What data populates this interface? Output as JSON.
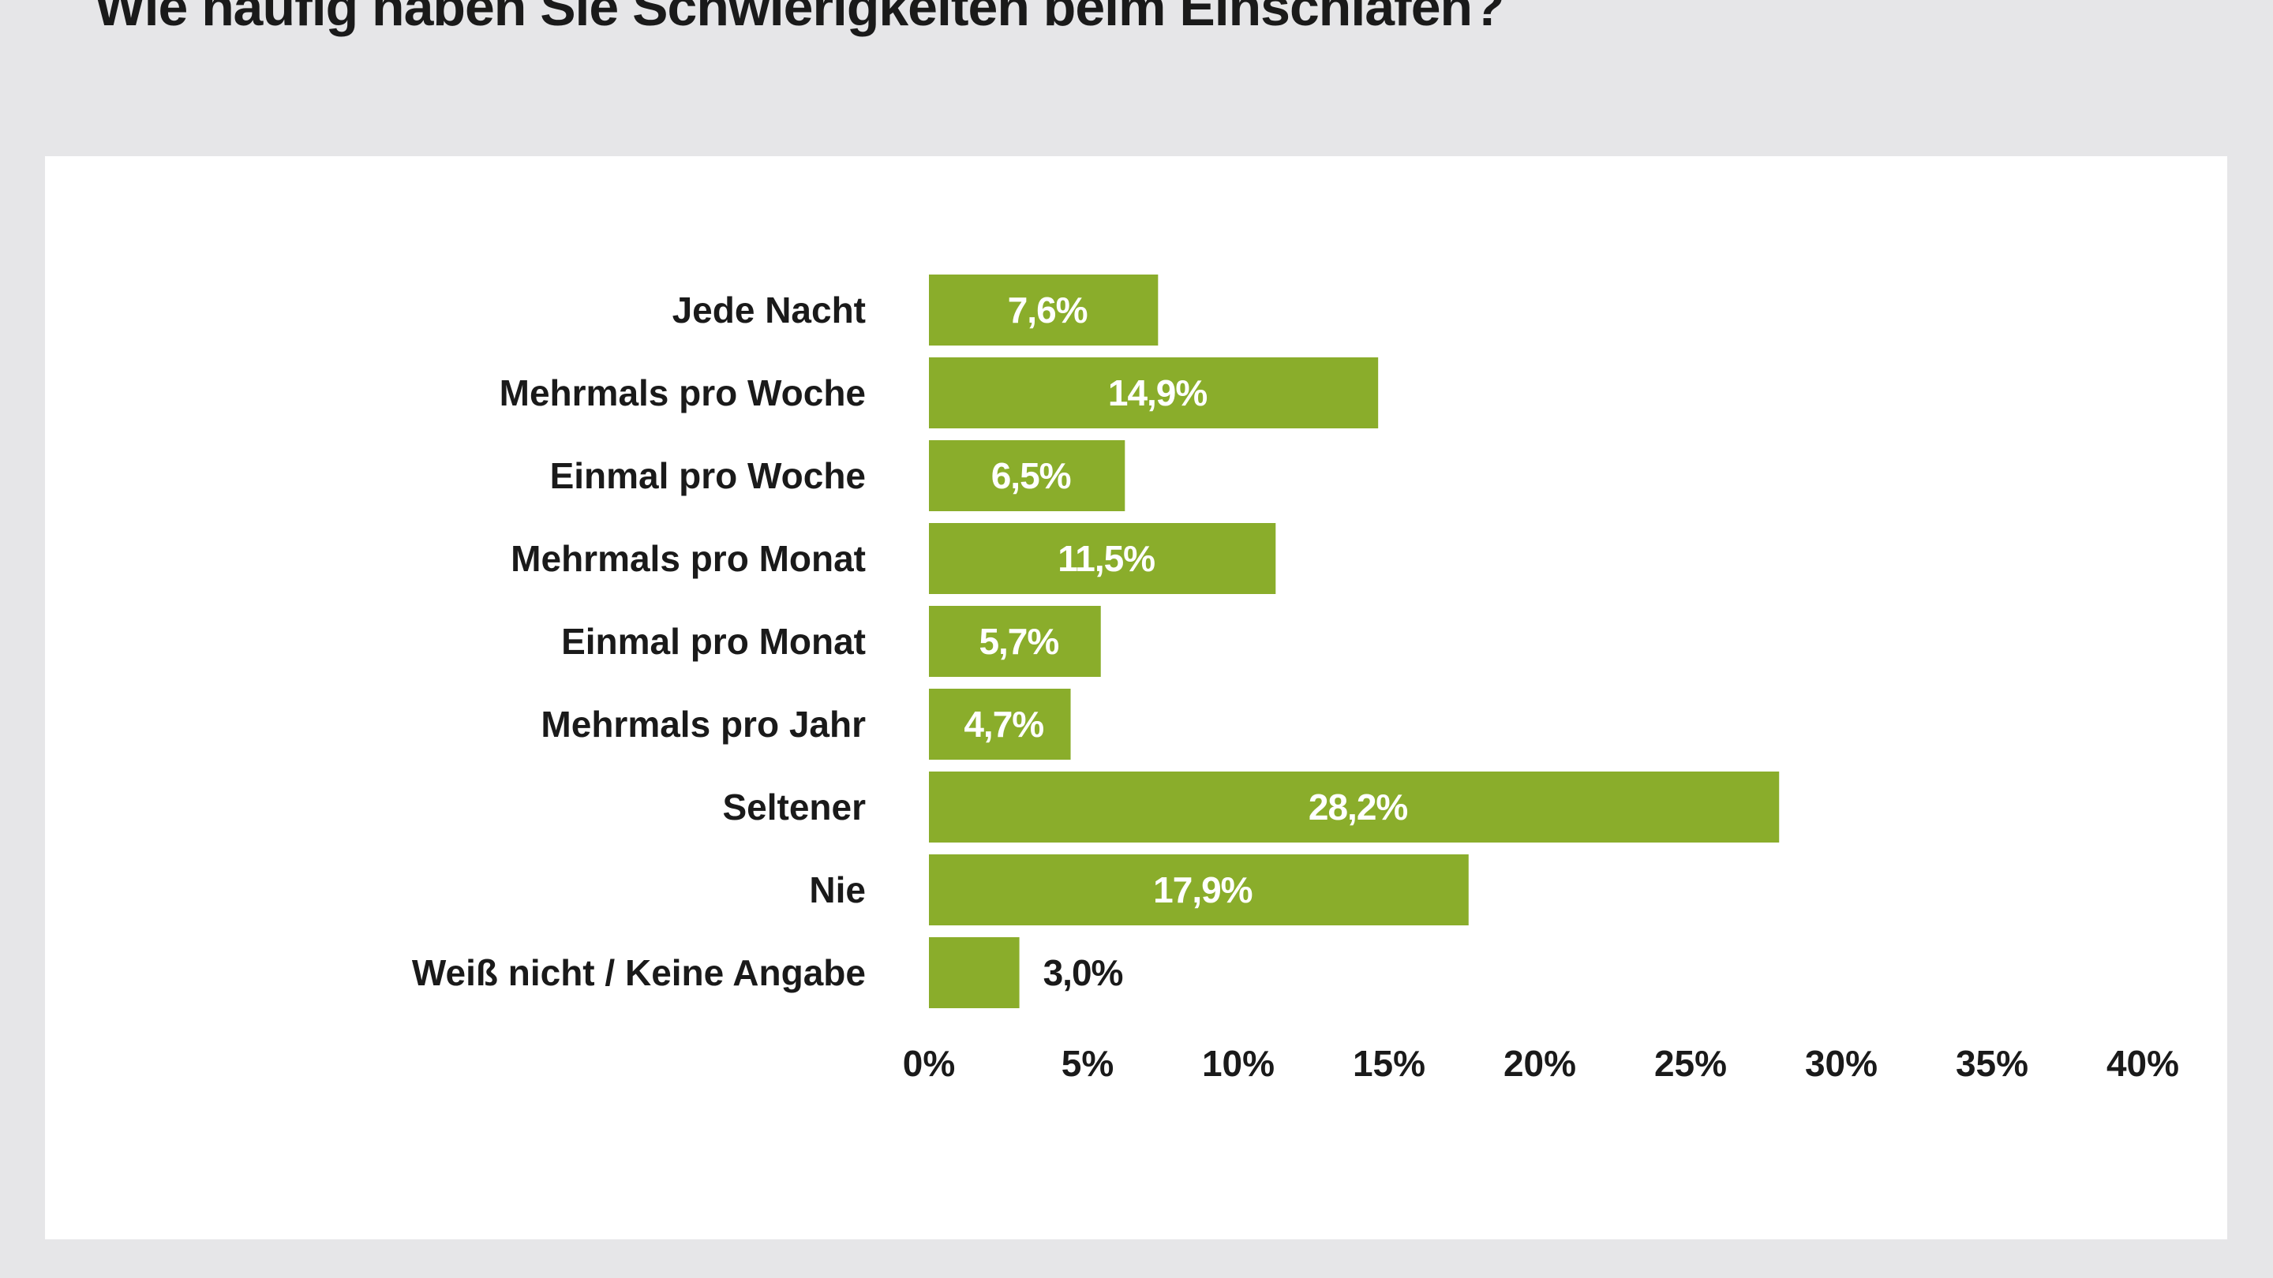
{
  "chart_data": {
    "type": "bar",
    "orientation": "horizontal",
    "title": "Wie häufig haben Sie Schwierigkeiten beim Einschlafen?",
    "categories": [
      "Jede Nacht",
      "Mehrmals pro Woche",
      "Einmal pro Woche",
      "Mehrmals pro Monat",
      "Einmal pro Monat",
      "Mehrmals pro Jahr",
      "Seltener",
      "Nie",
      "Weiß nicht / Keine Angabe"
    ],
    "values": [
      7.6,
      14.9,
      6.5,
      11.5,
      5.7,
      4.7,
      28.2,
      17.9,
      3.0
    ],
    "data_labels": [
      "7,6%",
      "14,9%",
      "6,5%",
      "11,5%",
      "5,7%",
      "4,7%",
      "28,2%",
      "17,9%",
      "3,0%"
    ],
    "xlim": [
      0,
      40
    ],
    "xticks": [
      0,
      5,
      10,
      15,
      20,
      25,
      30,
      35,
      40
    ],
    "xtick_labels": [
      "0%",
      "5%",
      "10%",
      "15%",
      "20%",
      "25%",
      "30%",
      "35%",
      "40%"
    ],
    "grid": false,
    "bar_color": "#8aad2b"
  }
}
